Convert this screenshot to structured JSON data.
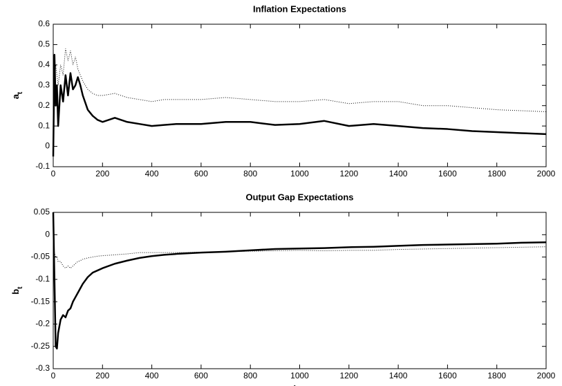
{
  "chart_data": [
    {
      "type": "line",
      "title": "Inflation Expectations",
      "ylabel": "a",
      "ylabel_subscript": "t",
      "x": [
        0,
        5,
        10,
        15,
        20,
        30,
        40,
        50,
        60,
        70,
        80,
        90,
        100,
        110,
        120,
        140,
        160,
        180,
        200,
        250,
        300,
        350,
        400,
        450,
        500,
        600,
        700,
        800,
        900,
        1000,
        1100,
        1200,
        1300,
        1400,
        1500,
        1600,
        1700,
        1800,
        1900,
        2000
      ],
      "series": [
        {
          "color": "#000000",
          "style": "solid",
          "values": [
            -0.05,
            0.45,
            0.2,
            0.3,
            0.1,
            0.3,
            0.22,
            0.35,
            0.25,
            0.36,
            0.28,
            0.3,
            0.34,
            0.3,
            0.25,
            0.18,
            0.15,
            0.13,
            0.12,
            0.14,
            0.12,
            0.11,
            0.1,
            0.105,
            0.11,
            0.11,
            0.12,
            0.12,
            0.105,
            0.11,
            0.125,
            0.1,
            0.11,
            0.1,
            0.09,
            0.085,
            0.075,
            0.07,
            0.065,
            0.06
          ]
        },
        {
          "color": "#000000",
          "style": "dotted",
          "values": [
            0.48,
            0.3,
            0.4,
            0.35,
            0.3,
            0.4,
            0.35,
            0.48,
            0.42,
            0.47,
            0.4,
            0.44,
            0.38,
            0.35,
            0.32,
            0.28,
            0.26,
            0.25,
            0.25,
            0.26,
            0.24,
            0.23,
            0.22,
            0.23,
            0.23,
            0.23,
            0.24,
            0.23,
            0.22,
            0.22,
            0.23,
            0.21,
            0.22,
            0.22,
            0.2,
            0.2,
            0.19,
            0.18,
            0.175,
            0.17
          ]
        }
      ],
      "xlim": [
        0,
        2000
      ],
      "xticks": [
        0,
        200,
        400,
        600,
        800,
        1000,
        1200,
        1400,
        1600,
        1800,
        2000
      ],
      "ylim": [
        -0.1,
        0.6
      ],
      "yticks": [
        -0.1,
        0,
        0.1,
        0.2,
        0.3,
        0.4,
        0.5,
        0.6
      ],
      "grid": false
    },
    {
      "type": "line",
      "title": "Output Gap  Expectations",
      "xlabel": "time",
      "ylabel": "b",
      "ylabel_subscript": "t",
      "x": [
        0,
        5,
        10,
        15,
        20,
        30,
        40,
        50,
        60,
        70,
        80,
        90,
        100,
        110,
        120,
        140,
        160,
        180,
        200,
        250,
        300,
        350,
        400,
        450,
        500,
        600,
        700,
        800,
        900,
        1000,
        1100,
        1200,
        1300,
        1400,
        1500,
        1600,
        1700,
        1800,
        1900,
        2000
      ],
      "series": [
        {
          "color": "#000000",
          "style": "solid",
          "values": [
            0.05,
            -0.1,
            -0.25,
            -0.255,
            -0.22,
            -0.19,
            -0.18,
            -0.185,
            -0.17,
            -0.165,
            -0.15,
            -0.14,
            -0.13,
            -0.12,
            -0.11,
            -0.095,
            -0.085,
            -0.08,
            -0.075,
            -0.065,
            -0.058,
            -0.052,
            -0.048,
            -0.045,
            -0.043,
            -0.04,
            -0.038,
            -0.035,
            -0.032,
            -0.031,
            -0.03,
            -0.028,
            -0.027,
            -0.025,
            -0.023,
            -0.022,
            -0.021,
            -0.02,
            -0.018,
            -0.017
          ]
        },
        {
          "color": "#000000",
          "style": "dotted",
          "values": [
            -0.03,
            -0.04,
            -0.05,
            -0.05,
            -0.06,
            -0.06,
            -0.07,
            -0.075,
            -0.07,
            -0.075,
            -0.07,
            -0.065,
            -0.06,
            -0.058,
            -0.055,
            -0.052,
            -0.05,
            -0.048,
            -0.047,
            -0.045,
            -0.043,
            -0.04,
            -0.04,
            -0.04,
            -0.04,
            -0.039,
            -0.038,
            -0.037,
            -0.036,
            -0.035,
            -0.036,
            -0.035,
            -0.035,
            -0.033,
            -0.032,
            -0.031,
            -0.03,
            -0.029,
            -0.028,
            -0.027
          ]
        }
      ],
      "xlim": [
        0,
        2000
      ],
      "xticks": [
        0,
        200,
        400,
        600,
        800,
        1000,
        1200,
        1400,
        1600,
        1800,
        2000
      ],
      "ylim": [
        -0.3,
        0.05
      ],
      "yticks": [
        -0.3,
        -0.25,
        -0.2,
        -0.15,
        -0.1,
        -0.05,
        0,
        0.05
      ],
      "grid": false
    }
  ]
}
